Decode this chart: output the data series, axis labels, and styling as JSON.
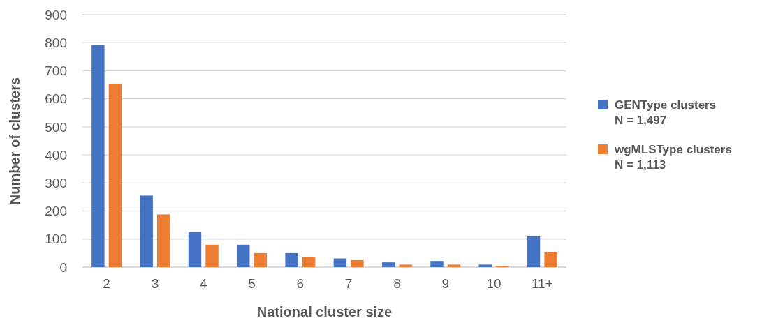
{
  "chart_data": {
    "type": "bar",
    "xlabel": "National cluster size",
    "ylabel": "Number of clusters",
    "categories": [
      "2",
      "3",
      "4",
      "5",
      "6",
      "7",
      "8",
      "9",
      "10",
      "11+"
    ],
    "series": [
      {
        "name": "GENType clusters\nN = 1,497",
        "color": "#4472c4",
        "values": [
          792,
          255,
          125,
          80,
          50,
          31,
          17,
          22,
          9,
          110
        ]
      },
      {
        "name": "wgMLSType clusters\nN = 1,113",
        "color": "#ed7d31",
        "values": [
          654,
          188,
          80,
          50,
          37,
          25,
          9,
          9,
          5,
          53
        ]
      }
    ],
    "ylim": [
      0,
      900
    ],
    "yticks": [
      0,
      100,
      200,
      300,
      400,
      500,
      600,
      700,
      800,
      900
    ],
    "grid": "y",
    "legend": "right"
  }
}
